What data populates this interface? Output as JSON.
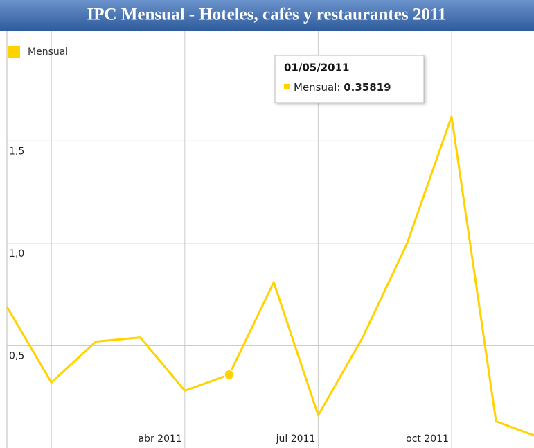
{
  "chart_data": {
    "type": "line",
    "title": "IPC Mensual - Hoteles, cafés y restaurantes 2011",
    "categories": [
      null,
      null,
      null,
      null,
      "abr 2011",
      null,
      null,
      "jul 2011",
      null,
      null,
      "oct 2011",
      null,
      null
    ],
    "series": [
      {
        "name": "Mensual",
        "color": "#ffd200",
        "values": [
          0.69,
          0.32,
          0.52,
          0.54,
          0.28,
          0.35819,
          0.81,
          0.16,
          0.54,
          1.0,
          1.62,
          0.13,
          0.05
        ]
      }
    ],
    "ylim": [
      0,
      2.04
    ],
    "yticks": [
      {
        "value": 0.5,
        "label": "0,5"
      },
      {
        "value": 1.0,
        "label": "1,0"
      },
      {
        "value": 1.5,
        "label": "1,5"
      }
    ],
    "grid": true,
    "tooltip": {
      "date": "01/05/2011",
      "value": 0.35819
    }
  }
}
